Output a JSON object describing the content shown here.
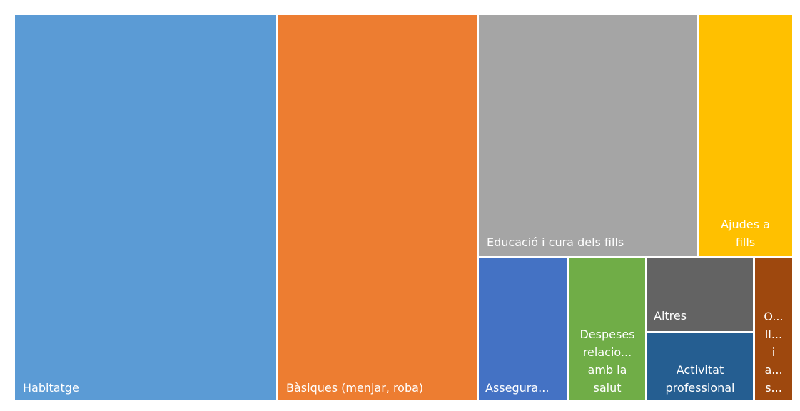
{
  "chart_data": {
    "type": "treemap",
    "title": "",
    "items": [
      {
        "name": "Habitatge",
        "label_lines": [
          "Habitatge"
        ],
        "color": "#5b9bd5"
      },
      {
        "name": "Bàsiques (menjar, roba)",
        "label_lines": [
          "Bàsiques (menjar, roba)"
        ],
        "color": "#ed7d31"
      },
      {
        "name": "Educació i cura dels fills",
        "label_lines": [
          "Educació i cura dels fills"
        ],
        "color": "#a5a5a5"
      },
      {
        "name": "Ajudes a fills",
        "label_lines": [
          "Ajudes a",
          "fills"
        ],
        "color": "#ffc000"
      },
      {
        "name": "Assegura...",
        "label_lines": [
          "Assegura..."
        ],
        "color": "#4472c4"
      },
      {
        "name": "Despeses relacio... amb la salut",
        "label_lines": [
          "Despeses",
          "relacio...",
          "amb la",
          "salut"
        ],
        "color": "#70ad47"
      },
      {
        "name": "Altres",
        "label_lines": [
          "Altres"
        ],
        "color": "#636363"
      },
      {
        "name": "Activitat professional",
        "label_lines": [
          "Activitat",
          "professional"
        ],
        "color": "#255e91"
      },
      {
        "name": "O... ll... i a... s...",
        "label_lines": [
          "O...",
          "ll...",
          "i",
          "a...",
          "s..."
        ],
        "color": "#9e480e"
      }
    ]
  }
}
